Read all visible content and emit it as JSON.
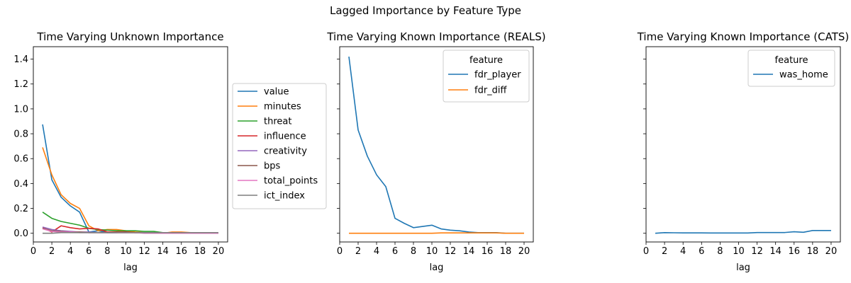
{
  "suptitle": "Lagged Importance by Feature Type",
  "chart_data": [
    {
      "type": "line",
      "title": "Time Varying Unknown Importance",
      "xlabel": "lag",
      "ylabel": "",
      "xlim": [
        0,
        21
      ],
      "ylim": [
        -0.07,
        1.5
      ],
      "xticks": [
        0,
        2,
        4,
        6,
        8,
        10,
        12,
        14,
        16,
        18,
        20
      ],
      "yticks": [
        0.0,
        0.2,
        0.4,
        0.6,
        0.8,
        1.0,
        1.2,
        1.4
      ],
      "ytick_labels": [
        "0.0",
        "0.2",
        "0.4",
        "0.6",
        "0.8",
        "1.0",
        "1.2",
        "1.4"
      ],
      "legend": {
        "title": "",
        "placement": "right-outside"
      },
      "x": [
        1,
        2,
        3,
        4,
        5,
        6,
        7,
        8,
        9,
        10,
        11,
        12,
        13,
        14,
        15,
        16,
        17,
        18,
        19,
        20
      ],
      "series": [
        {
          "name": "value",
          "color": "#1f77b4",
          "values": [
            0.875,
            0.43,
            0.29,
            0.22,
            0.17,
            0.01,
            0.02,
            0.005,
            0.005,
            0.01,
            0.005,
            0.005,
            0.005,
            0.0,
            0.0,
            0.0,
            0.005,
            0.005,
            0.005,
            0.005
          ]
        },
        {
          "name": "minutes",
          "color": "#ff7f0e",
          "values": [
            0.69,
            0.47,
            0.31,
            0.24,
            0.2,
            0.06,
            0.02,
            0.03,
            0.03,
            0.02,
            0.01,
            0.005,
            0.005,
            0.0,
            0.01,
            0.01,
            0.005,
            0.005,
            0.005,
            0.005
          ]
        },
        {
          "name": "threat",
          "color": "#2ca02c",
          "values": [
            0.17,
            0.12,
            0.095,
            0.08,
            0.065,
            0.04,
            0.03,
            0.025,
            0.02,
            0.02,
            0.02,
            0.015,
            0.015,
            0.005,
            0.005,
            0.005,
            0.005,
            0.005,
            0.005,
            0.005
          ]
        },
        {
          "name": "influence",
          "color": "#d62728",
          "values": [
            0.045,
            0.01,
            0.06,
            0.045,
            0.035,
            0.04,
            0.035,
            0.01,
            0.01,
            0.01,
            0.005,
            0.005,
            0.005,
            0.0,
            0.0,
            0.0,
            0.005,
            0.005,
            0.005,
            0.005
          ]
        },
        {
          "name": "creativity",
          "color": "#9467bd",
          "values": [
            0.05,
            0.03,
            0.02,
            0.015,
            0.01,
            0.01,
            0.005,
            0.005,
            0.005,
            0.005,
            0.005,
            0.005,
            0.005,
            0.0,
            0.0,
            0.0,
            0.0,
            0.005,
            0.005,
            0.005
          ]
        },
        {
          "name": "bps",
          "color": "#8c564b",
          "values": [
            0.04,
            0.02,
            0.015,
            0.01,
            0.01,
            0.005,
            0.005,
            0.005,
            0.005,
            0.005,
            0.005,
            0.005,
            0.005,
            0.0,
            0.0,
            0.0,
            0.0,
            0.0,
            0.0,
            0.0
          ]
        },
        {
          "name": "total_points",
          "color": "#e377c2",
          "values": [
            0.035,
            0.015,
            0.01,
            0.01,
            0.005,
            0.005,
            0.005,
            0.005,
            0.005,
            0.005,
            0.005,
            0.0,
            0.0,
            0.0,
            0.0,
            0.0,
            0.0,
            0.0,
            0.0,
            0.0
          ]
        },
        {
          "name": "ict_index",
          "color": "#7f7f7f",
          "values": [
            0.0,
            0.0,
            0.005,
            0.005,
            0.005,
            0.005,
            0.005,
            0.005,
            0.005,
            0.005,
            0.005,
            0.005,
            0.005,
            0.005,
            0.005,
            0.005,
            0.005,
            0.005,
            0.005,
            0.005
          ]
        }
      ]
    },
    {
      "type": "line",
      "title": "Time Varying Known Importance (REALS)",
      "xlabel": "lag",
      "ylabel": "",
      "xlim": [
        0,
        21
      ],
      "ylim": [
        -0.07,
        1.5
      ],
      "xticks": [
        0,
        2,
        4,
        6,
        8,
        10,
        12,
        14,
        16,
        18,
        20
      ],
      "legend": {
        "title": "feature",
        "placement": "upper-right"
      },
      "x": [
        1,
        2,
        3,
        4,
        5,
        6,
        7,
        8,
        9,
        10,
        11,
        12,
        13,
        14,
        15,
        16,
        17,
        18,
        19,
        20
      ],
      "series": [
        {
          "name": "fdr_player",
          "color": "#1f77b4",
          "values": [
            1.42,
            0.83,
            0.62,
            0.47,
            0.375,
            0.12,
            0.08,
            0.045,
            0.055,
            0.065,
            0.035,
            0.025,
            0.02,
            0.01,
            0.005,
            0.005,
            0.005,
            0.0,
            0.0,
            0.0
          ]
        },
        {
          "name": "fdr_diff",
          "color": "#ff7f0e",
          "values": [
            0.0,
            0.0,
            0.0,
            0.0,
            0.0,
            0.0,
            0.0,
            0.0,
            0.0,
            0.0,
            0.003,
            0.003,
            0.003,
            0.003,
            0.003,
            0.003,
            0.003,
            0.0,
            0.0,
            0.0
          ]
        }
      ]
    },
    {
      "type": "line",
      "title": "Time Varying Known Importance (CATS)",
      "xlabel": "lag",
      "ylabel": "",
      "xlim": [
        0,
        21
      ],
      "ylim": [
        -0.07,
        1.5
      ],
      "xticks": [
        0,
        2,
        4,
        6,
        8,
        10,
        12,
        14,
        16,
        18,
        20
      ],
      "legend": {
        "title": "feature",
        "placement": "upper-right"
      },
      "x": [
        1,
        2,
        3,
        4,
        5,
        6,
        7,
        8,
        9,
        10,
        11,
        12,
        13,
        14,
        15,
        16,
        17,
        18,
        19,
        20
      ],
      "series": [
        {
          "name": "was_home",
          "color": "#1f77b4",
          "values": [
            0.0,
            0.005,
            0.004,
            0.003,
            0.003,
            0.003,
            0.002,
            0.002,
            0.002,
            0.002,
            0.002,
            0.006,
            0.006,
            0.006,
            0.006,
            0.012,
            0.008,
            0.022,
            0.022,
            0.022
          ]
        }
      ]
    }
  ]
}
